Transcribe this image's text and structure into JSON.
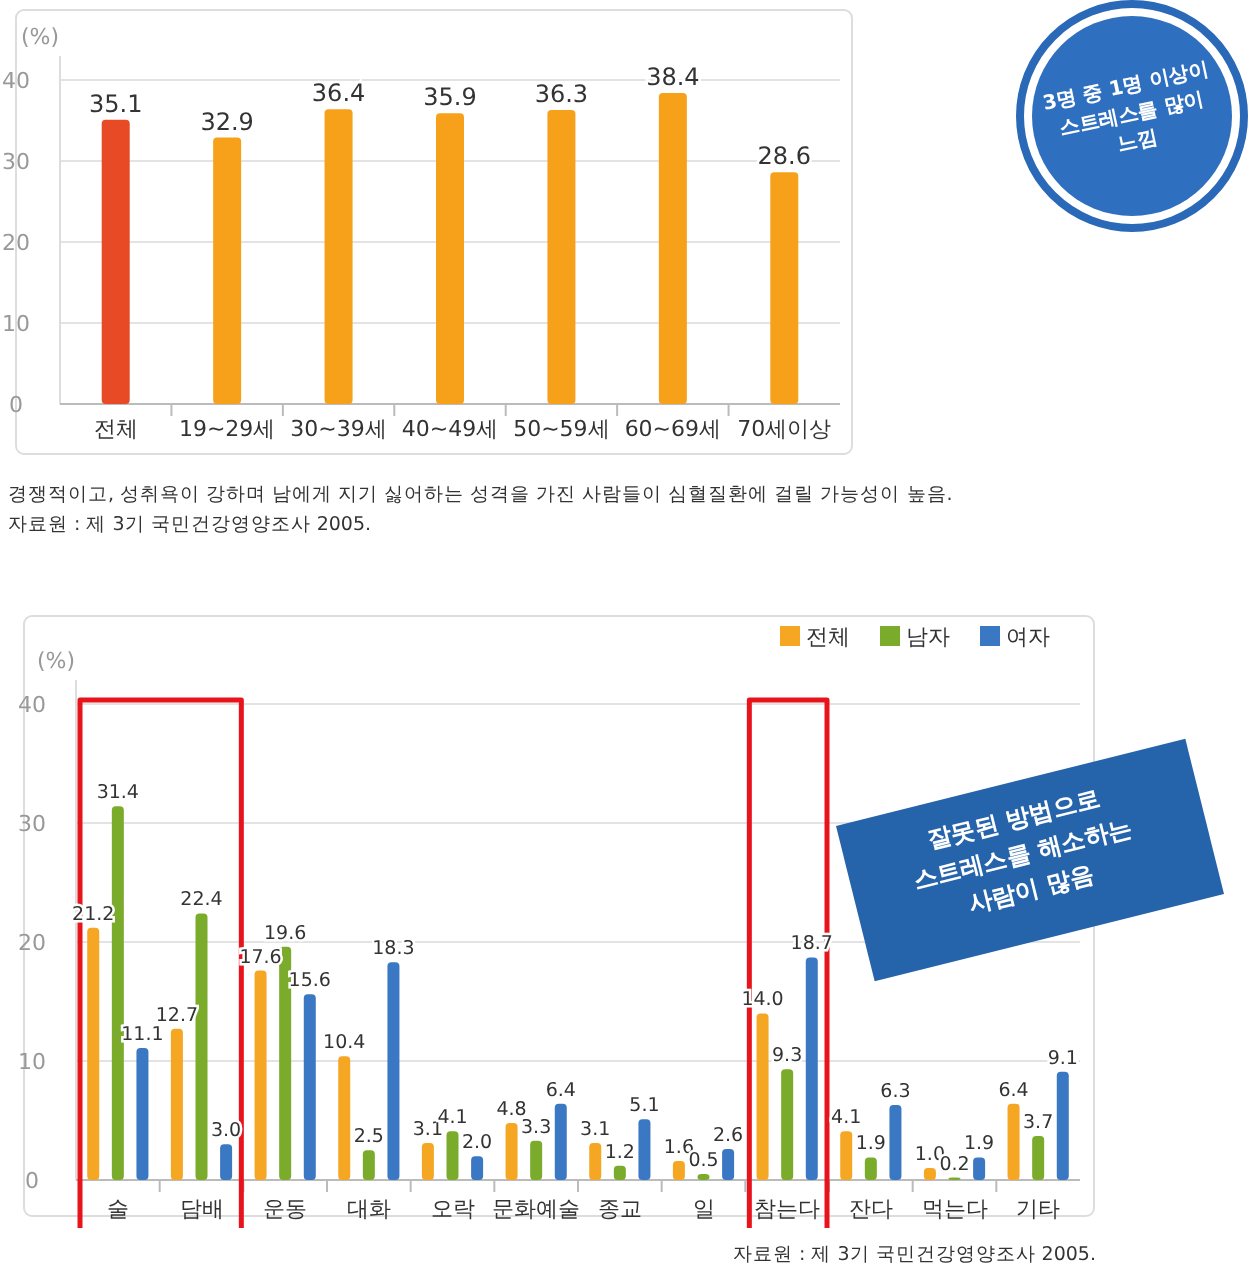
{
  "chart_data": [
    {
      "type": "bar",
      "ylabel": "(%)",
      "categories": [
        "전체",
        "19~29세",
        "30~39세",
        "40~49세",
        "50~59세",
        "60~69세",
        "70세이상"
      ],
      "values": [
        35.1,
        32.9,
        36.4,
        35.9,
        36.3,
        38.4,
        28.6
      ],
      "colors": [
        "#e84a25",
        "#f7a11a",
        "#f7a11a",
        "#f7a11a",
        "#f7a11a",
        "#f7a11a",
        "#f7a11a"
      ],
      "ylim": [
        0,
        40
      ],
      "yticks": [
        0,
        10,
        20,
        30,
        40
      ],
      "grid": "y",
      "data_labels": true,
      "legend": false,
      "annotations": [
        "3명 중 1명 이상이\n스트레스를 많이\n느낌",
        "경쟁적이고, 성취욕이 강하며 남에게 지기 싫어하는 성격을 가진 사람들이 심혈질환에 걸릴 가능성이 높음.",
        "자료원 : 제 3기 국민건강영양조사 2005."
      ]
    },
    {
      "type": "bar",
      "ylabel": "(%)",
      "categories": [
        "술",
        "담배",
        "운동",
        "대화",
        "오락",
        "문화예술",
        "종교",
        "일",
        "참는다",
        "잔다",
        "먹는다",
        "기타"
      ],
      "series": [
        {
          "name": "전체",
          "color": "#f5a623",
          "values": [
            21.2,
            12.7,
            17.6,
            10.4,
            3.1,
            4.8,
            3.1,
            1.6,
            14.0,
            4.1,
            1.0,
            6.4
          ],
          "value_labels": [
            "21.2",
            "12.7",
            "17.6",
            "10.4",
            "3.1",
            "4.8",
            "3.1",
            "1.6",
            "14.0",
            "4.1",
            "1.0",
            "6.4"
          ]
        },
        {
          "name": "남자",
          "color": "#7aab2a",
          "values": [
            31.4,
            22.4,
            19.6,
            2.5,
            4.1,
            3.3,
            1.2,
            0.5,
            9.3,
            1.9,
            0.2,
            3.7
          ],
          "value_labels": [
            "31.4",
            "22.4",
            "19.6",
            "2.5",
            "4.1",
            "3.3",
            "1.2",
            "0.5",
            "9.3",
            "1.9",
            "0.2",
            "3.7"
          ]
        },
        {
          "name": "여자",
          "color": "#3a78c3",
          "values": [
            11.1,
            3.0,
            15.6,
            18.3,
            2.0,
            6.4,
            5.1,
            2.6,
            18.7,
            6.3,
            1.9,
            9.1
          ],
          "value_labels": [
            "11.1",
            "3.0",
            "15.6",
            "18.3",
            "2.0",
            "6.4",
            "5.1",
            "2.6",
            "18.7",
            "6.3",
            "1.9",
            "9.1"
          ]
        }
      ],
      "ylim": [
        0,
        40
      ],
      "yticks": [
        0,
        10,
        20,
        30,
        40
      ],
      "grid": "y",
      "legend": "top right",
      "annotations": [
        "잘못된 방법으로\n스트레스를 해소하는\n사람이 많음",
        "자료원 : 제 3기 국민건강영양조사 2005."
      ]
    }
  ]
}
